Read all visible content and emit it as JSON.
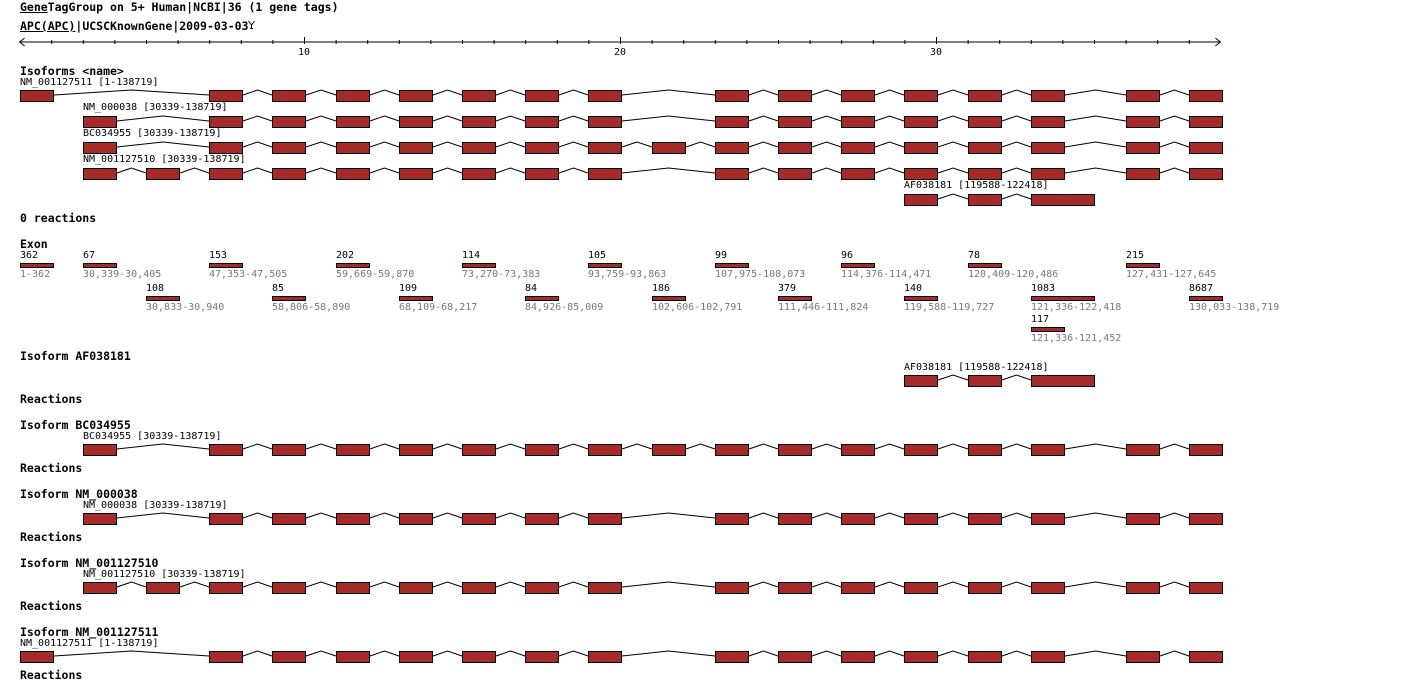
{
  "header": {
    "title_link": "Gene",
    "title_rest": "TagGroup on 5+ Human|NCBI|36 (1 gene tags)",
    "gene_link": "APC(APC)",
    "gene_rest": "|UCSCKnownGene|2009-03-03",
    "filter_icon": "funnel-icon"
  },
  "ruler": {
    "tick_labels": [
      "10",
      "20",
      "30"
    ],
    "min": 1,
    "max": 39
  },
  "isoforms_heading": "Isoforms <name>",
  "reactions_count": "0 reactions",
  "exon_heading": "Exon",
  "exons": [
    {
      "size": "362",
      "range": "1-362"
    },
    {
      "size": "67",
      "range": "30,339-30,405"
    },
    {
      "size": "108",
      "range": "30,833-30,940"
    },
    {
      "size": "153",
      "range": "47,353-47,505"
    },
    {
      "size": "85",
      "range": "58,806-58,890"
    },
    {
      "size": "202",
      "range": "59,669-59,870"
    },
    {
      "size": "109",
      "range": "68,109-68,217"
    },
    {
      "size": "114",
      "range": "73,270-73,383"
    },
    {
      "size": "84",
      "range": "84,926-85,009"
    },
    {
      "size": "105",
      "range": "93,759-93,863"
    },
    {
      "size": "186",
      "range": "102,606-102,791"
    },
    {
      "size": "99",
      "range": "107,975-108,073"
    },
    {
      "size": "379",
      "range": "111,446-111,824"
    },
    {
      "size": "96",
      "range": "114,376-114,471"
    },
    {
      "size": "140",
      "range": "119,588-119,727"
    },
    {
      "size": "78",
      "range": "120,409-120,486"
    },
    {
      "size": "1083",
      "range": "121,336-122,418"
    },
    {
      "size": "117",
      "range": "121,336-121,452"
    },
    {
      "size": "215",
      "range": "127,431-127,645"
    },
    {
      "size": "8687",
      "range": "130,033-138,719"
    }
  ],
  "transcripts": {
    "NM_001127511": {
      "label": "NM_001127511 [1-138719]",
      "exons": [
        0,
        3,
        4,
        5,
        6,
        7,
        8,
        9,
        11,
        12,
        13,
        14,
        15,
        17,
        18,
        19
      ]
    },
    "NM_000038": {
      "label": "NM_000038 [30339-138719]",
      "exons": [
        1,
        3,
        4,
        5,
        6,
        7,
        8,
        9,
        11,
        12,
        13,
        14,
        15,
        17,
        18,
        19
      ]
    },
    "BC034955": {
      "label": "BC034955 [30339-138719]",
      "exons": [
        1,
        3,
        4,
        5,
        6,
        7,
        8,
        9,
        10,
        11,
        12,
        13,
        14,
        15,
        17,
        18,
        19
      ]
    },
    "NM_001127510": {
      "label": "NM_001127510 [30339-138719]",
      "exons": [
        1,
        2,
        3,
        4,
        5,
        6,
        7,
        8,
        9,
        11,
        12,
        13,
        14,
        15,
        17,
        18,
        19
      ]
    },
    "AF038181": {
      "label": "AF038181 [119588-122418]",
      "exons": [
        14,
        15,
        16
      ]
    }
  },
  "isoform_sections": [
    {
      "heading": "Isoform AF038181",
      "transcript": "AF038181",
      "reactions": "Reactions"
    },
    {
      "heading": "Isoform BC034955",
      "transcript": "BC034955",
      "reactions": "Reactions"
    },
    {
      "heading": "Isoform NM_000038",
      "transcript": "NM_000038",
      "reactions": "Reactions"
    },
    {
      "heading": "Isoform NM_001127510",
      "transcript": "NM_001127510",
      "reactions": "Reactions"
    },
    {
      "heading": "Isoform NM_001127511",
      "transcript": "NM_001127511",
      "reactions": "Reactions"
    }
  ],
  "colors": {
    "exon": "#a52a2a",
    "range_text": "#777777"
  }
}
